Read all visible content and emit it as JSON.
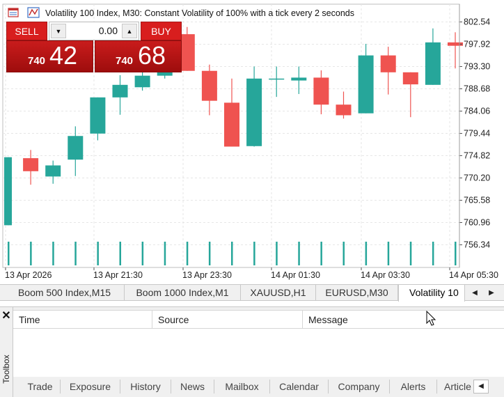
{
  "chart_header": {
    "title": "Volatility 100 Index, M30:  Constant Volatility of 100% with a tick every 2 seconds",
    "icons": [
      "chart-window-icon",
      "indicators-icon"
    ]
  },
  "one_click": {
    "sell_label": "SELL",
    "buy_label": "BUY",
    "volume": "0.00",
    "sell_price_small": "740",
    "sell_price_big": "42",
    "buy_price_small": "740",
    "buy_price_big": "68",
    "sell_color": "#d81e1e",
    "buy_color": "#d81e1e"
  },
  "chart_data": {
    "type": "candlestick",
    "y_ticks": [
      "802.54",
      "797.92",
      "793.30",
      "788.68",
      "784.06",
      "779.44",
      "774.82",
      "770.20",
      "765.58",
      "760.96",
      "756.34"
    ],
    "x_ticks": [
      "13 Apr 2026",
      "13 Apr 21:30",
      "13 Apr 23:30",
      "14 Apr 01:30",
      "14 Apr 03:30",
      "14 Apr 05:30"
    ],
    "ylim": [
      754.9,
      805.0
    ],
    "bull_color": "#26a69a",
    "bear_color": "#ef5350",
    "candles": [
      {
        "o": 760.4,
        "h": 774.5,
        "l": 760.4,
        "c": 774.5
      },
      {
        "o": 774.3,
        "h": 776.0,
        "l": 768.8,
        "c": 771.6
      },
      {
        "o": 770.5,
        "h": 773.8,
        "l": 769.0,
        "c": 772.8
      },
      {
        "o": 774.0,
        "h": 780.9,
        "l": 770.6,
        "c": 778.9
      },
      {
        "o": 779.4,
        "h": 786.9,
        "l": 778.0,
        "c": 786.9
      },
      {
        "o": 786.9,
        "h": 791.5,
        "l": 783.3,
        "c": 789.5
      },
      {
        "o": 789.0,
        "h": 792.4,
        "l": 788.3,
        "c": 791.4
      },
      {
        "o": 791.4,
        "h": 798.6,
        "l": 790.8,
        "c": 796.1
      },
      {
        "o": 800.0,
        "h": 801.5,
        "l": 792.4,
        "c": 792.4
      },
      {
        "o": 792.4,
        "h": 793.7,
        "l": 783.2,
        "c": 786.2
      },
      {
        "o": 785.8,
        "h": 790.8,
        "l": 776.7,
        "c": 776.7
      },
      {
        "o": 776.8,
        "h": 793.3,
        "l": 776.7,
        "c": 790.8
      },
      {
        "o": 790.8,
        "h": 793.3,
        "l": 787.0,
        "c": 790.8
      },
      {
        "o": 790.4,
        "h": 793.3,
        "l": 787.6,
        "c": 791.0
      },
      {
        "o": 791.0,
        "h": 792.5,
        "l": 783.4,
        "c": 785.4
      },
      {
        "o": 785.4,
        "h": 788.1,
        "l": 782.5,
        "c": 783.2
      },
      {
        "o": 783.6,
        "h": 798.0,
        "l": 783.6,
        "c": 795.6
      },
      {
        "o": 795.6,
        "h": 797.4,
        "l": 787.5,
        "c": 792.1
      },
      {
        "o": 792.1,
        "h": 792.1,
        "l": 782.8,
        "c": 789.6
      },
      {
        "o": 789.5,
        "h": 801.2,
        "l": 789.5,
        "c": 798.3
      },
      {
        "o": 798.3,
        "h": 800.4,
        "l": 792.9,
        "c": 797.6
      }
    ],
    "tick_volume_bars": 21
  },
  "chart_tabs": {
    "tabs": [
      "Boom 500 Index,M15",
      "Boom 1000 Index,M1",
      "XAUUSD,H1",
      "EURUSD,M30",
      "Volatility 10"
    ],
    "active_index": 4,
    "prev_icon": "◀",
    "next_icon": "▶"
  },
  "toolbox": {
    "label": "Toolbox",
    "close_icon": "✕",
    "columns": [
      "Time",
      "Source",
      "Message"
    ],
    "tabs": [
      "Trade",
      "Exposure",
      "History",
      "News",
      "Mailbox",
      "Calendar",
      "Company",
      "Alerts",
      "Article"
    ],
    "scroll_icon": "◀"
  }
}
